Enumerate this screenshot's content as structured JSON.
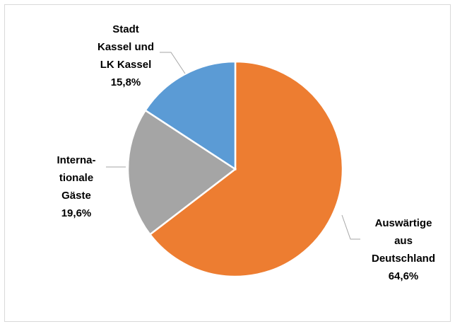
{
  "chart_data": {
    "type": "pie",
    "categories": [
      "Auswärtige\naus\nDeutschland",
      "Interna-\ntionale\nGäste",
      "Stadt\nKassel und\nLK Kassel"
    ],
    "values": [
      64.6,
      19.6,
      15.8
    ],
    "value_labels": [
      "64,6%",
      "19,6%",
      "15,8%"
    ],
    "colors": [
      "#ed7d31",
      "#a5a5a5",
      "#5b9bd5"
    ]
  }
}
